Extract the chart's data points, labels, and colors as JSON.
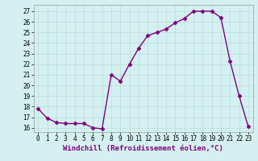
{
  "x": [
    0,
    1,
    2,
    3,
    4,
    5,
    6,
    7,
    8,
    9,
    10,
    11,
    12,
    13,
    14,
    15,
    16,
    17,
    18,
    19,
    20,
    21,
    22,
    23
  ],
  "y": [
    17.8,
    16.9,
    16.5,
    16.4,
    16.4,
    16.4,
    16.0,
    15.9,
    21.0,
    20.4,
    22.0,
    23.5,
    24.7,
    25.0,
    25.3,
    25.9,
    26.3,
    27.0,
    27.0,
    27.0,
    26.4,
    22.3,
    19.0,
    16.1
  ],
  "x_labels": [
    "0",
    "1",
    "2",
    "3",
    "4",
    "5",
    "6",
    "7",
    "8",
    "9",
    "10",
    "11",
    "12",
    "13",
    "14",
    "15",
    "16",
    "17",
    "18",
    "19",
    "20",
    "21",
    "22",
    "23"
  ],
  "y_ticks": [
    16,
    17,
    18,
    19,
    20,
    21,
    22,
    23,
    24,
    25,
    26,
    27
  ],
  "ylim": [
    15.6,
    27.6
  ],
  "xlim": [
    -0.5,
    23.5
  ],
  "line_color": "#800080",
  "marker": "D",
  "marker_size": 2.5,
  "bg_color": "#d4f0f0",
  "grid_color": "#b8dede",
  "xlabel": "Windchill (Refroidissement éolien,°C)",
  "xlabel_fontsize": 6.5,
  "tick_fontsize": 5.5,
  "linewidth": 1.0
}
